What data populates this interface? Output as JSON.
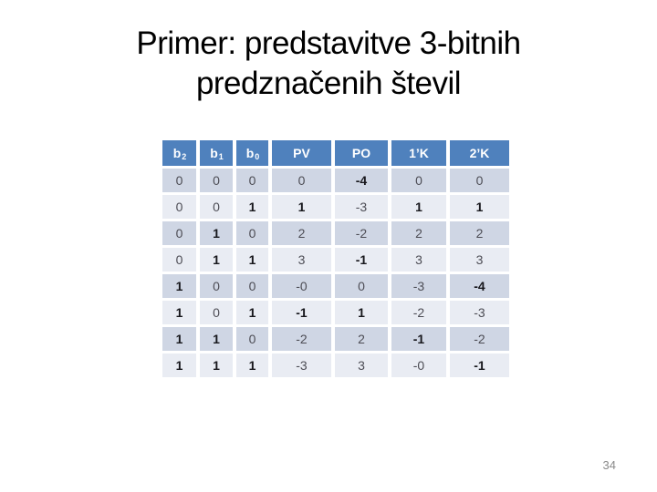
{
  "slide": {
    "title_line1": "Primer: predstavitve 3-bitnih",
    "title_line2": "predznačenih števil",
    "page_number": "34"
  },
  "table": {
    "columns": [
      {
        "label": "b",
        "sub": "2"
      },
      {
        "label": "b",
        "sub": "1"
      },
      {
        "label": "b",
        "sub": "0"
      },
      {
        "label": "PV"
      },
      {
        "label": "PO"
      },
      {
        "label": "1’K"
      },
      {
        "label": "2’K"
      }
    ],
    "rows": [
      [
        "0",
        "0",
        "0",
        "0",
        "-4",
        "0",
        "0"
      ],
      [
        "0",
        "0",
        "1",
        "1",
        "-3",
        "1",
        "1"
      ],
      [
        "0",
        "1",
        "0",
        "2",
        "-2",
        "2",
        "2"
      ],
      [
        "0",
        "1",
        "1",
        "3",
        "-1",
        "3",
        "3"
      ],
      [
        "1",
        "0",
        "0",
        "-0",
        "0",
        "-3",
        "-4"
      ],
      [
        "1",
        "0",
        "1",
        "-1",
        "1",
        "-2",
        "-3"
      ],
      [
        "1",
        "1",
        "0",
        "-2",
        "2",
        "-1",
        "-2"
      ],
      [
        "1",
        "1",
        "1",
        "-3",
        "3",
        "-0",
        "-1"
      ]
    ]
  },
  "colors": {
    "header_bg": "#4f81bd",
    "row_dark": "#cfd6e4",
    "row_light": "#e9ecf3",
    "title_text": "#000000",
    "page_number_text": "#8a8a8a"
  }
}
